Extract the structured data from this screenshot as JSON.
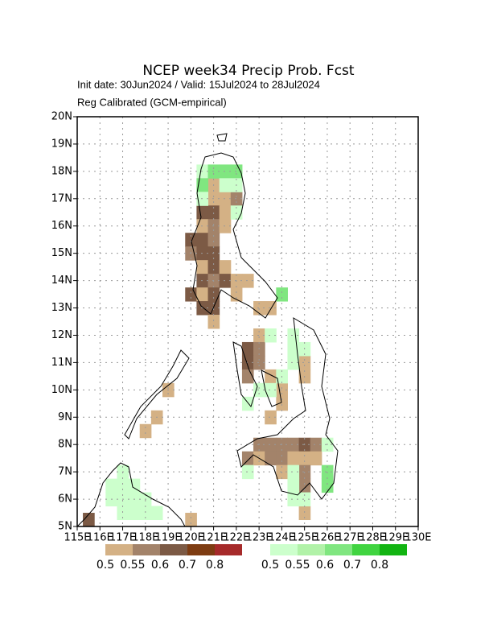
{
  "map": {
    "title": "NCEP week34 Precip Prob. Fcst",
    "subtitle": "Init date: 30Jun2024 / Valid: 15Jul2024 to 28Jul2024",
    "note": "Reg Calibrated (GCM-empirical)",
    "lonlim": [
      115,
      130
    ],
    "latlim": [
      5,
      20
    ],
    "lat_ticks": [
      {
        "value": 20,
        "label": "20N"
      },
      {
        "value": 19,
        "label": "19N"
      },
      {
        "value": 18,
        "label": "18N"
      },
      {
        "value": 17,
        "label": "17N"
      },
      {
        "value": 16,
        "label": "16N"
      },
      {
        "value": 15,
        "label": "15N"
      },
      {
        "value": 14,
        "label": "14N"
      },
      {
        "value": 13,
        "label": "13N"
      },
      {
        "value": 12,
        "label": "12N"
      },
      {
        "value": 11,
        "label": "11N"
      },
      {
        "value": 10,
        "label": "10N"
      },
      {
        "value": 9,
        "label": "9N"
      },
      {
        "value": 8,
        "label": "8N"
      },
      {
        "value": 7,
        "label": "7N"
      },
      {
        "value": 6,
        "label": "6N"
      },
      {
        "value": 5,
        "label": "5N"
      }
    ],
    "lon_ticks": [
      {
        "value": 115,
        "label": "115E"
      },
      {
        "value": 116,
        "label": "116E"
      },
      {
        "value": 117,
        "label": "117E"
      },
      {
        "value": 118,
        "label": "118E"
      },
      {
        "value": 119,
        "label": "119E"
      },
      {
        "value": 120,
        "label": "120E"
      },
      {
        "value": 121,
        "label": "121E"
      },
      {
        "value": 122,
        "label": "122E"
      },
      {
        "value": 123,
        "label": "123E"
      },
      {
        "value": 124,
        "label": "124E"
      },
      {
        "value": 125,
        "label": "125E"
      },
      {
        "value": 126,
        "label": "126E"
      },
      {
        "value": 127,
        "label": "127E"
      },
      {
        "value": 128,
        "label": "128E"
      },
      {
        "value": 129,
        "label": "129E"
      },
      {
        "value": 130,
        "label": "130E"
      }
    ],
    "below": {
      "levels": [
        0.5,
        0.55,
        0.6,
        0.7,
        0.8
      ],
      "colors": [
        "#d4b185",
        "#a3836a",
        "#7c5a45",
        "#7e3c12",
        "#a62a2a"
      ],
      "cells": [
        [
          120.75,
          17.25,
          0.5
        ],
        [
          120.75,
          16.75,
          0.5
        ],
        [
          121.25,
          16.75,
          0.5
        ],
        [
          121.75,
          16.75,
          0.55
        ],
        [
          120.25,
          16.25,
          0.6
        ],
        [
          120.75,
          16.25,
          0.6
        ],
        [
          121.25,
          16.25,
          0.5
        ],
        [
          120.25,
          15.75,
          0.5
        ],
        [
          120.75,
          15.75,
          0.55
        ],
        [
          121.25,
          15.75,
          0.5
        ],
        [
          119.75,
          15.25,
          0.6
        ],
        [
          120.25,
          15.25,
          0.6
        ],
        [
          120.75,
          15.25,
          0.55
        ],
        [
          119.75,
          14.75,
          0.55
        ],
        [
          120.25,
          14.75,
          0.6
        ],
        [
          120.75,
          14.75,
          0.6
        ],
        [
          120.25,
          14.25,
          0.5
        ],
        [
          120.75,
          14.25,
          0.6
        ],
        [
          121.25,
          14.25,
          0.5
        ],
        [
          120.25,
          13.75,
          0.6
        ],
        [
          120.75,
          13.75,
          0.55
        ],
        [
          121.25,
          13.75,
          0.6
        ],
        [
          121.75,
          13.75,
          0.5
        ],
        [
          122.25,
          13.75,
          0.5
        ],
        [
          119.75,
          13.25,
          0.6
        ],
        [
          120.25,
          13.25,
          0.5
        ],
        [
          120.75,
          13.25,
          0.6
        ],
        [
          121.75,
          13.25,
          0.5
        ],
        [
          120.25,
          12.75,
          0.6
        ],
        [
          120.75,
          12.75,
          0.6
        ],
        [
          122.75,
          12.75,
          0.5
        ],
        [
          123.25,
          12.75,
          0.5
        ],
        [
          120.75,
          12.25,
          0.5
        ],
        [
          122.75,
          11.75,
          0.5
        ],
        [
          122.25,
          11.25,
          0.6
        ],
        [
          122.75,
          11.25,
          0.55
        ],
        [
          122.25,
          10.75,
          0.6
        ],
        [
          122.75,
          10.75,
          0.55
        ],
        [
          124.75,
          10.75,
          0.5
        ],
        [
          122.25,
          10.25,
          0.55
        ],
        [
          123.25,
          10.25,
          0.5
        ],
        [
          124.75,
          10.25,
          0.5
        ],
        [
          123.75,
          9.75,
          0.5
        ],
        [
          118.75,
          9.75,
          0.5
        ],
        [
          123.75,
          9.25,
          0.5
        ],
        [
          123.25,
          8.75,
          0.5
        ],
        [
          118.25,
          8.75,
          0.5
        ],
        [
          117.75,
          8.25,
          0.5
        ],
        [
          122.75,
          7.75,
          0.55
        ],
        [
          123.25,
          7.75,
          0.55
        ],
        [
          123.75,
          7.75,
          0.55
        ],
        [
          124.25,
          7.75,
          0.55
        ],
        [
          124.75,
          7.75,
          0.6
        ],
        [
          125.25,
          7.75,
          0.55
        ],
        [
          122.25,
          7.25,
          0.55
        ],
        [
          122.75,
          7.25,
          0.5
        ],
        [
          123.25,
          7.25,
          0.55
        ],
        [
          123.75,
          7.25,
          0.55
        ],
        [
          124.25,
          7.25,
          0.5
        ],
        [
          124.75,
          7.25,
          0.5
        ],
        [
          125.25,
          7.25,
          0.5
        ],
        [
          123.75,
          6.75,
          0.5
        ],
        [
          124.75,
          6.75,
          0.55
        ],
        [
          124.75,
          6.25,
          0.55
        ],
        [
          124.75,
          5.25,
          0.5
        ],
        [
          115.25,
          5.0,
          0.6
        ],
        [
          119.75,
          5.0,
          0.5
        ]
      ]
    },
    "above": {
      "levels": [
        0.5,
        0.55,
        0.6,
        0.7,
        0.8
      ],
      "colors": [
        "#ccffcc",
        "#b1f2a8",
        "#80e680",
        "#40d440",
        "#12b412"
      ],
      "cells": [
        [
          120.25,
          17.75,
          0.5
        ],
        [
          120.75,
          17.75,
          0.6
        ],
        [
          121.25,
          17.75,
          0.6
        ],
        [
          121.75,
          17.75,
          0.6
        ],
        [
          120.25,
          17.25,
          0.6
        ],
        [
          121.25,
          17.25,
          0.5
        ],
        [
          121.75,
          17.25,
          0.5
        ],
        [
          120.25,
          16.75,
          0.5
        ],
        [
          121.75,
          16.25,
          0.5
        ],
        [
          123.75,
          13.25,
          0.6
        ],
        [
          123.25,
          11.75,
          0.5
        ],
        [
          124.25,
          11.75,
          0.5
        ],
        [
          124.25,
          11.25,
          0.5
        ],
        [
          124.75,
          11.25,
          0.5
        ],
        [
          124.25,
          10.75,
          0.5
        ],
        [
          123.75,
          10.25,
          0.5
        ],
        [
          122.75,
          9.75,
          0.5
        ],
        [
          123.25,
          9.75,
          0.5
        ],
        [
          122.25,
          9.25,
          0.5
        ],
        [
          125.75,
          7.75,
          0.5
        ],
        [
          122.25,
          6.75,
          0.5
        ],
        [
          124.25,
          6.75,
          0.5
        ],
        [
          125.75,
          6.75,
          0.6
        ],
        [
          124.25,
          6.25,
          0.5
        ],
        [
          125.75,
          6.25,
          0.6
        ],
        [
          124.25,
          5.75,
          0.5
        ],
        [
          124.75,
          5.75,
          0.5
        ],
        [
          116.25,
          6.25,
          0.5
        ],
        [
          116.75,
          6.75,
          0.5
        ],
        [
          116.75,
          6.25,
          0.5
        ],
        [
          117.25,
          6.25,
          0.5
        ],
        [
          116.25,
          5.75,
          0.5
        ],
        [
          116.75,
          5.75,
          0.5
        ],
        [
          117.25,
          5.75,
          0.5
        ],
        [
          117.75,
          5.75,
          0.5
        ],
        [
          116.75,
          5.25,
          0.5
        ],
        [
          117.25,
          5.25,
          0.5
        ],
        [
          117.75,
          5.25,
          0.5
        ],
        [
          118.25,
          5.25,
          0.5
        ]
      ]
    }
  }
}
